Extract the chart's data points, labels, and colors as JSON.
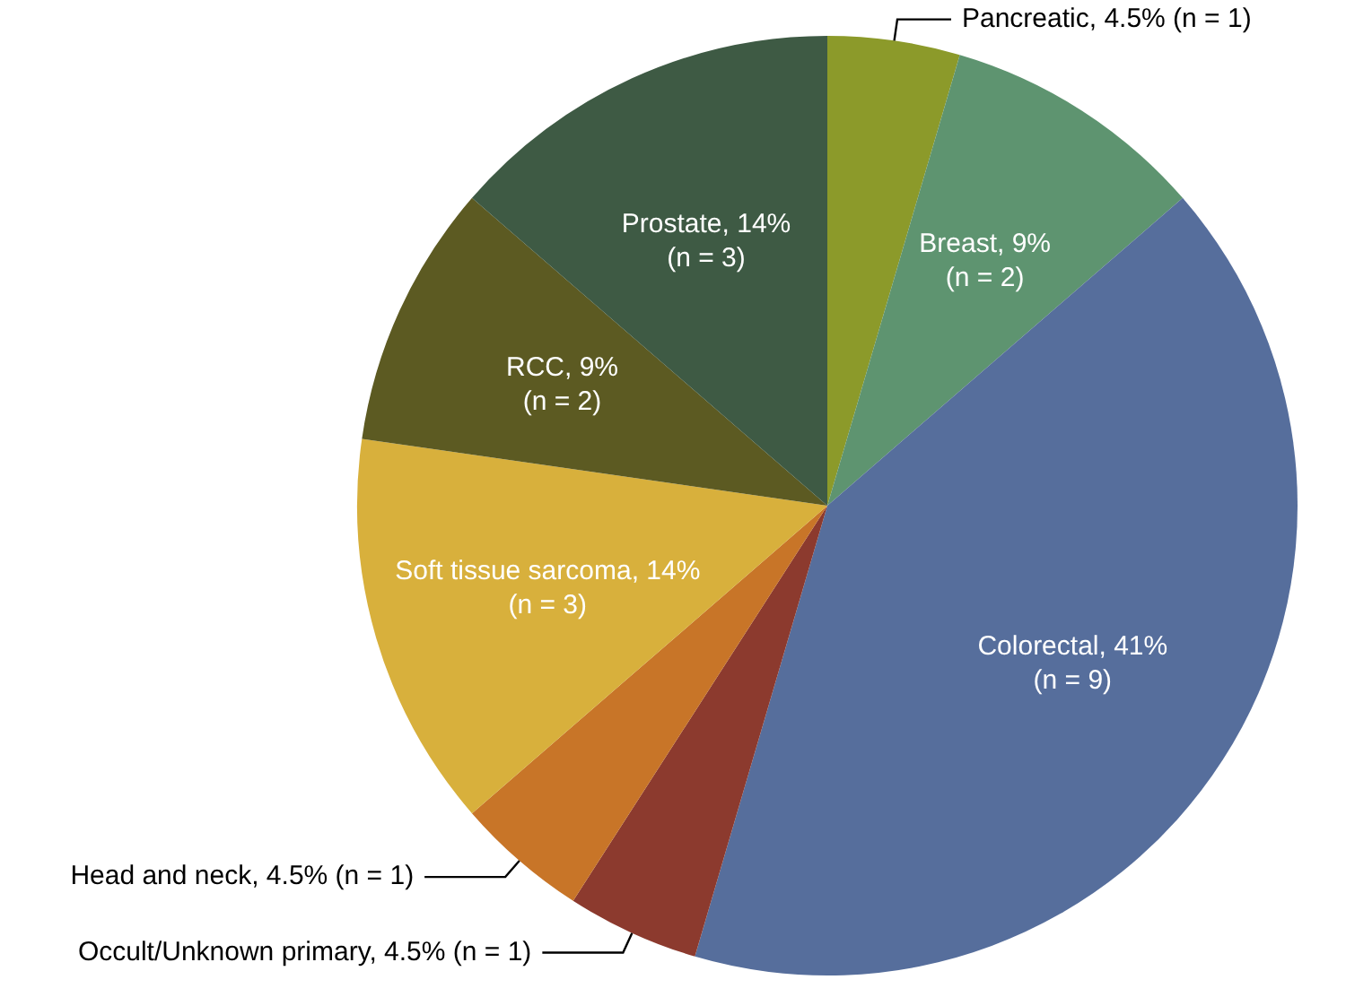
{
  "chart_data": {
    "type": "pie",
    "categories": [
      "Pancreatic",
      "Breast",
      "Colorectal",
      "Occult/Unknown primary",
      "Head and neck",
      "Soft tissue sarcoma",
      "RCC",
      "Prostate"
    ],
    "values": [
      1,
      2,
      9,
      1,
      1,
      3,
      2,
      3
    ],
    "value_labels": [
      "4.5% (n = 1)",
      "9% (n = 2)",
      "41% (n = 9)",
      "4.5% (n = 1)",
      "4.5% (n = 1)",
      "14% (n = 3)",
      "9% (n = 2)",
      "14% (n = 3)"
    ],
    "colors": [
      "#8c9a2a",
      "#5e9470",
      "#566e9c",
      "#8c3a2e",
      "#c87528",
      "#d8b03c",
      "#5c5a22",
      "#3e5a44"
    ],
    "legend": false
  }
}
